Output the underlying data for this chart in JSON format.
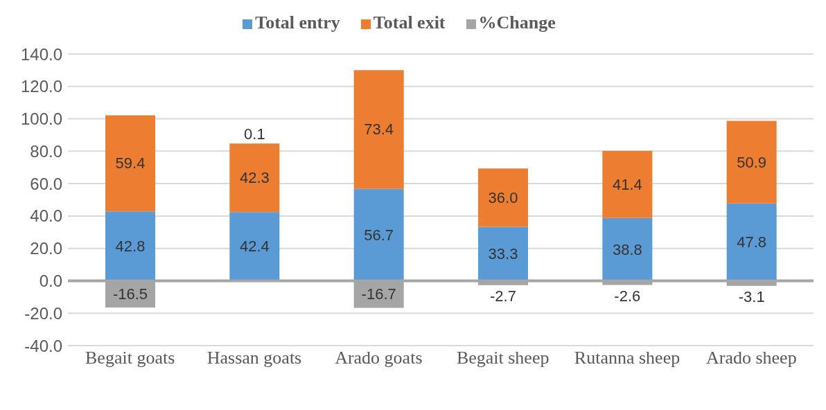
{
  "chart_data": {
    "type": "bar",
    "stacked": true,
    "grid": "y",
    "legend": "top",
    "categories": [
      "Begait goats",
      "Hassan goats",
      "Arado goats",
      "Begait sheep",
      "Rutanna sheep",
      "Arado sheep"
    ],
    "series": [
      {
        "name": "Total entry",
        "color": "#5b9bd5",
        "values": [
          42.8,
          42.4,
          56.7,
          33.3,
          38.8,
          47.8
        ],
        "value_labels": [
          "42.8",
          "42.4",
          "56.7",
          "33.3",
          "38.8",
          "47.8"
        ]
      },
      {
        "name": "Total exit",
        "color": "#ed7d31",
        "values": [
          59.4,
          42.3,
          73.4,
          36.0,
          41.4,
          50.9
        ],
        "value_labels": [
          "59.4",
          "42.3",
          "73.4",
          "36.0",
          "41.4",
          "50.9"
        ]
      },
      {
        "name": "%Change",
        "color": "#a5a5a5",
        "values": [
          -16.5,
          0.1,
          -16.7,
          -2.7,
          -2.6,
          -3.1
        ],
        "value_labels": [
          "-16.5",
          "0.1",
          "-16.7",
          "-2.7",
          "-2.6",
          "-3.1"
        ]
      }
    ],
    "ylim": [
      -40,
      140
    ],
    "yticks": [
      {
        "value": -40,
        "label": "-40.0"
      },
      {
        "value": -20,
        "label": "-20.0"
      },
      {
        "value": 0,
        "label": "0.0"
      },
      {
        "value": 20,
        "label": "20.0"
      },
      {
        "value": 40,
        "label": "40.0"
      },
      {
        "value": 60,
        "label": "60.0"
      },
      {
        "value": 80,
        "label": "80.0"
      },
      {
        "value": 100,
        "label": "100.0"
      },
      {
        "value": 120,
        "label": "120.0"
      },
      {
        "value": 140,
        "label": "140.0"
      }
    ]
  }
}
